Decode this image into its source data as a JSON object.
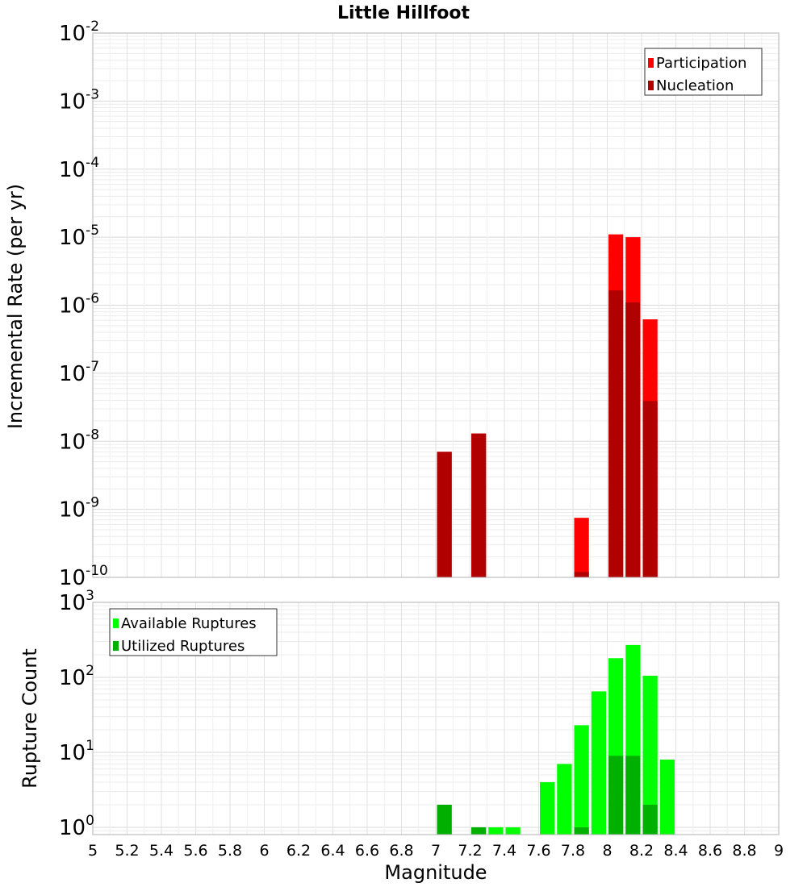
{
  "chart_data": [
    {
      "type": "bar",
      "title": "Little Hillfoot",
      "ylabel": "Incremental Rate (per yr)",
      "xlabel": "",
      "xlim": [
        5,
        9
      ],
      "ylim": [
        1e-10,
        0.01
      ],
      "yscale": "log",
      "grid": true,
      "legend_position": "top-right",
      "legend": [
        "Participation",
        "Nucleation"
      ],
      "colors": {
        "Participation": "#ff0000",
        "Nucleation": "#b00000"
      },
      "bin_width": 0.1,
      "series": [
        {
          "name": "Participation",
          "x": [
            7.05,
            7.25,
            7.85,
            8.05,
            8.15,
            8.25
          ],
          "values": [
            7e-09,
            1.3e-08,
            7.5e-10,
            1.1e-05,
            1e-05,
            6.2e-07
          ]
        },
        {
          "name": "Nucleation",
          "x": [
            7.05,
            7.25,
            7.85,
            8.05,
            8.15,
            8.25
          ],
          "values": [
            7e-09,
            1.3e-08,
            1.2e-10,
            1.65e-06,
            1.1e-06,
            3.9e-08
          ]
        }
      ],
      "yticks": [
        {
          "base": "10",
          "exp": "-2"
        },
        {
          "base": "10",
          "exp": "-3"
        },
        {
          "base": "10",
          "exp": "-4"
        },
        {
          "base": "10",
          "exp": "-5"
        },
        {
          "base": "10",
          "exp": "-6"
        },
        {
          "base": "10",
          "exp": "-7"
        },
        {
          "base": "10",
          "exp": "-8"
        },
        {
          "base": "10",
          "exp": "-9"
        },
        {
          "base": "10",
          "exp": "-10"
        }
      ]
    },
    {
      "type": "bar",
      "title": "",
      "ylabel": "Rupture Count",
      "xlabel": "Magnitude",
      "xlim": [
        5,
        9
      ],
      "ylim": [
        0.8,
        1000
      ],
      "yscale": "log",
      "grid": true,
      "legend_position": "top-left",
      "legend": [
        "Available Ruptures",
        "Utilized Ruptures"
      ],
      "colors": {
        "Available Ruptures": "#00ff00",
        "Utilized Ruptures": "#00b000"
      },
      "bin_width": 0.1,
      "series": [
        {
          "name": "Available Ruptures",
          "x": [
            7.05,
            7.25,
            7.35,
            7.45,
            7.65,
            7.75,
            7.85,
            7.95,
            8.05,
            8.15,
            8.25,
            8.35
          ],
          "values": [
            2,
            1,
            1,
            1,
            4,
            7,
            23,
            65,
            180,
            270,
            105,
            8
          ]
        },
        {
          "name": "Utilized Ruptures",
          "x": [
            7.05,
            7.25,
            7.85,
            8.05,
            8.15,
            8.25
          ],
          "values": [
            2,
            1,
            1,
            9,
            9,
            2
          ]
        }
      ],
      "yticks": [
        {
          "base": "10",
          "exp": "3"
        },
        {
          "base": "10",
          "exp": "2"
        },
        {
          "base": "10",
          "exp": "1"
        },
        {
          "base": "10",
          "exp": "0"
        }
      ],
      "xticks": [
        "5",
        "5.2",
        "5.4",
        "5.6",
        "5.8",
        "6",
        "6.2",
        "6.4",
        "6.6",
        "6.8",
        "7",
        "7.2",
        "7.4",
        "7.6",
        "7.8",
        "8",
        "8.2",
        "8.4",
        "8.6",
        "8.8",
        "9"
      ]
    }
  ]
}
